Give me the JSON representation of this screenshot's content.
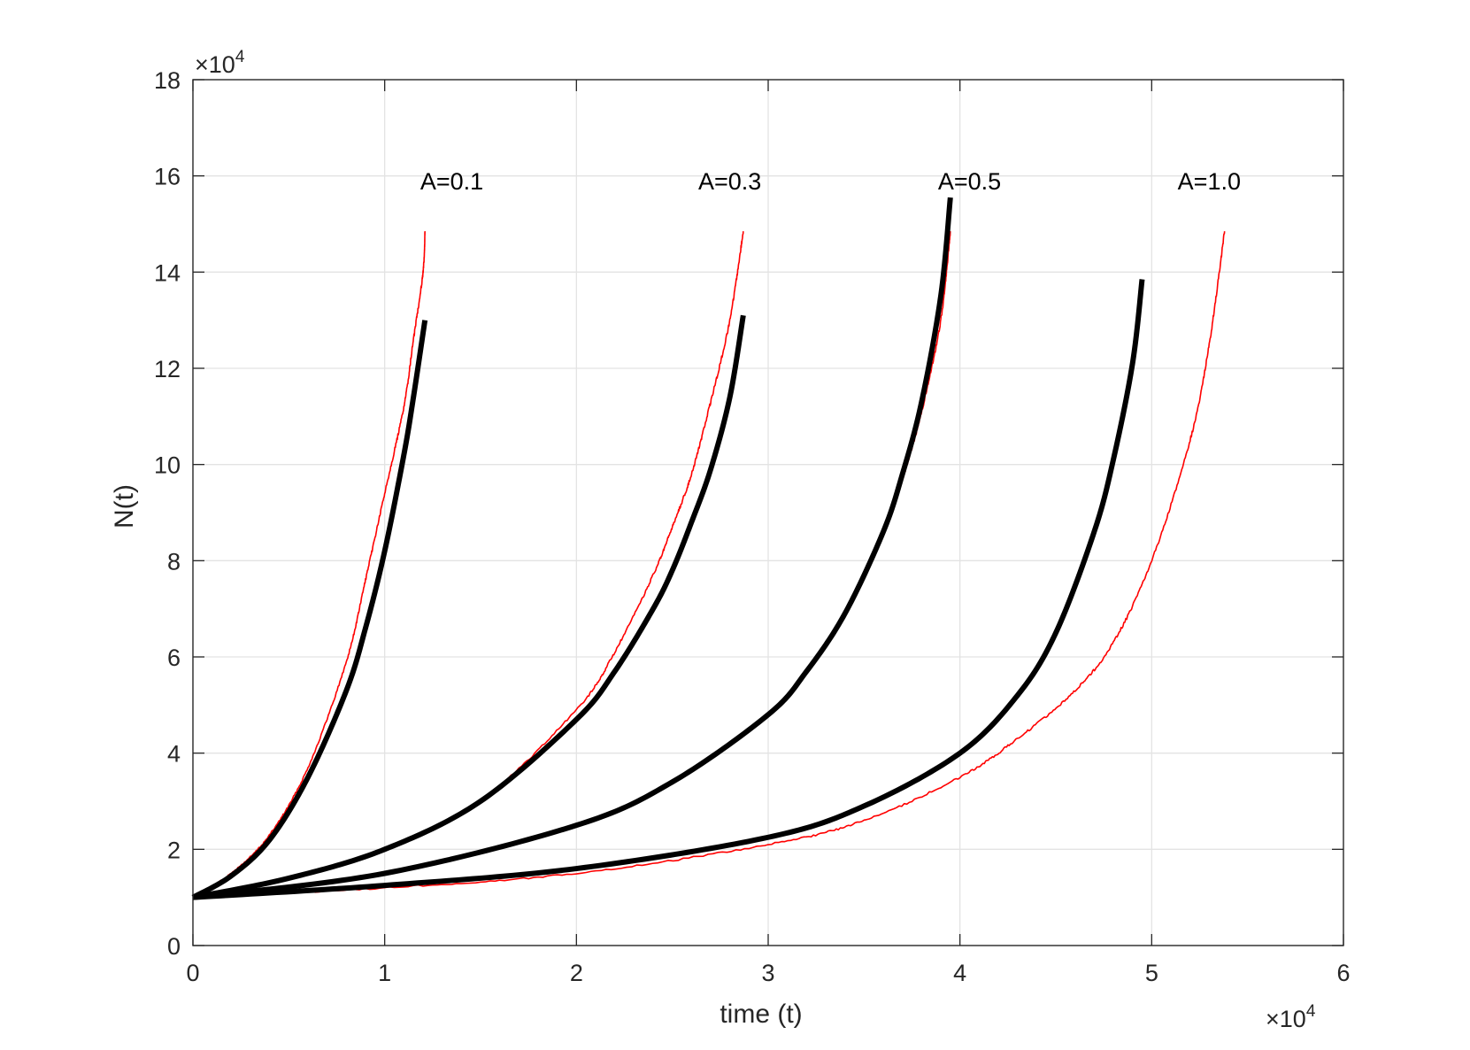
{
  "chart_data": {
    "type": "line",
    "xlabel": "time (t)",
    "ylabel": "N(t)",
    "xlim": [
      0,
      60000
    ],
    "ylim": [
      0,
      180000
    ],
    "x_ticks": [
      0,
      10000,
      20000,
      30000,
      40000,
      50000,
      60000
    ],
    "y_ticks": [
      0,
      20000,
      40000,
      60000,
      80000,
      100000,
      120000,
      140000,
      160000,
      180000
    ],
    "x_tick_labels": [
      "0",
      "1",
      "2",
      "3",
      "4",
      "5",
      "6"
    ],
    "y_tick_labels": [
      "0",
      "2",
      "4",
      "6",
      "8",
      "10",
      "12",
      "14",
      "16",
      "18"
    ],
    "x_exponent": {
      "base": "×10",
      "power": "4"
    },
    "y_exponent": {
      "base": "×10",
      "power": "4"
    },
    "grid": true,
    "box": true,
    "annotations": [
      {
        "text": "A=0.1",
        "x": 13500,
        "y": 159000
      },
      {
        "text": "A=0.3",
        "x": 28000,
        "y": 159000
      },
      {
        "text": "A=0.5",
        "x": 40500,
        "y": 159000
      },
      {
        "text": "A=1.0",
        "x": 53000,
        "y": 159000
      }
    ],
    "series": [
      {
        "style": "simulation",
        "color": "#ff0000",
        "width": 1.6,
        "noisy": true,
        "x": [
          0,
          2000,
          4000,
          6000,
          8000,
          9000,
          10000,
          11000,
          11500,
          12000,
          12100
        ],
        "y": [
          10000,
          15000,
          23000,
          37000,
          59000,
          76000,
          94000,
          112000,
          126000,
          140000,
          148500
        ]
      },
      {
        "style": "theory",
        "color": "#000000",
        "width": 6,
        "x": [
          0,
          2000,
          4000,
          6000,
          8000,
          9000,
          10000,
          11000,
          11500,
          12100
        ],
        "y": [
          10000,
          14500,
          22000,
          35000,
          53000,
          66000,
          82000,
          102000,
          114000,
          130000
        ]
      },
      {
        "style": "simulation",
        "color": "#ff0000",
        "width": 1.6,
        "noisy": true,
        "x": [
          0,
          5000,
          10000,
          15000,
          20000,
          22000,
          24000,
          25000,
          26000,
          27000,
          28000,
          28700
        ],
        "y": [
          10000,
          14000,
          20000,
          30000,
          49000,
          61000,
          77000,
          87000,
          98000,
          113000,
          130000,
          148500
        ]
      },
      {
        "style": "theory",
        "color": "#000000",
        "width": 6,
        "x": [
          0,
          5000,
          10000,
          15000,
          20000,
          22000,
          24000,
          25000,
          26000,
          27000,
          28000,
          28700
        ],
        "y": [
          10000,
          14000,
          20000,
          30000,
          47000,
          57000,
          70000,
          78000,
          88000,
          99000,
          114000,
          131000
        ]
      },
      {
        "style": "simulation",
        "color": "#ff0000",
        "width": 1.6,
        "noisy": true,
        "x": [
          0,
          10000,
          20000,
          25000,
          30000,
          32000,
          34000,
          36000,
          37000,
          38000,
          39000,
          39500
        ],
        "y": [
          10000,
          15000,
          25000,
          34000,
          48000,
          57000,
          69000,
          86000,
          97000,
          111000,
          130000,
          148500
        ]
      },
      {
        "style": "theory",
        "color": "#000000",
        "width": 6,
        "x": [
          0,
          10000,
          20000,
          25000,
          30000,
          32000,
          34000,
          36000,
          37000,
          38000,
          39000,
          39500
        ],
        "y": [
          10000,
          15000,
          25000,
          34000,
          48000,
          57000,
          69000,
          86000,
          98000,
          113000,
          135000,
          155500
        ]
      },
      {
        "style": "simulation",
        "color": "#ff0000",
        "width": 1.6,
        "noisy": true,
        "x": [
          0,
          10000,
          20000,
          30000,
          35000,
          40000,
          43000,
          46000,
          48000,
          50000,
          52000,
          53000,
          53800
        ],
        "y": [
          10000,
          12000,
          15000,
          21000,
          26000,
          35000,
          43000,
          53000,
          63000,
          80000,
          105000,
          125000,
          148500
        ]
      },
      {
        "style": "theory",
        "color": "#000000",
        "width": 6,
        "x": [
          0,
          10000,
          20000,
          30000,
          35000,
          40000,
          43000,
          45000,
          47000,
          48000,
          49000,
          49500
        ],
        "y": [
          10000,
          12500,
          16000,
          22500,
          29000,
          40000,
          52000,
          65000,
          86000,
          101000,
          121000,
          138500
        ]
      }
    ]
  }
}
